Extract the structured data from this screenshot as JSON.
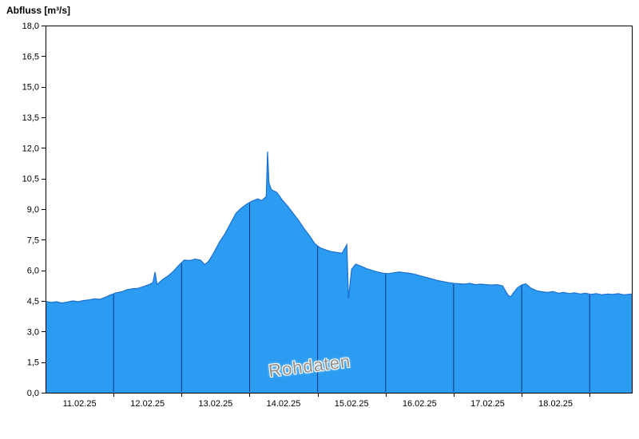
{
  "title": "Abfluss [m³/s]",
  "watermark": "Rohdaten",
  "chart_data": {
    "type": "area",
    "title": "Abfluss [m³/s]",
    "ylabel": "Abfluss [m³/s]",
    "xlabel": "",
    "x_unit": "days since 11.02.25 00:00",
    "xlim": [
      0,
      8.62
    ],
    "ylim": [
      0,
      18
    ],
    "grid": "vertical day boundaries inside filled area only",
    "y_ticks": [
      0,
      1.5,
      3,
      4.5,
      6,
      7.5,
      9,
      10.5,
      12,
      13.5,
      15,
      16.5,
      18
    ],
    "y_tick_labels": [
      "0,0",
      "1,5",
      "3,0",
      "4,5",
      "6,0",
      "7,5",
      "9,0",
      "10,5",
      "12,0",
      "13,5",
      "15,0",
      "16,5",
      "18,0"
    ],
    "x_tick_labels": [
      "11.02.25",
      "12.02.25",
      "13.02.25",
      "14.02.25",
      "15.02.25",
      "16.02.25",
      "17.02.25",
      "18.02.25"
    ],
    "x_tick_centers": [
      0.5,
      1.5,
      2.5,
      3.5,
      4.5,
      5.5,
      6.5,
      7.5
    ],
    "day_boundaries": [
      1,
      2,
      3,
      4,
      5,
      6,
      7,
      8
    ],
    "colors": {
      "fill": "#2B9CF2",
      "line": "#1B6FD0",
      "grid": "#14317C",
      "axis": "#000000",
      "watermark": "#8F8F8F"
    },
    "series": [
      {
        "name": "Rohdaten",
        "points": [
          [
            0.0,
            4.48
          ],
          [
            0.08,
            4.42
          ],
          [
            0.16,
            4.46
          ],
          [
            0.24,
            4.4
          ],
          [
            0.32,
            4.44
          ],
          [
            0.4,
            4.5
          ],
          [
            0.48,
            4.46
          ],
          [
            0.56,
            4.52
          ],
          [
            0.64,
            4.55
          ],
          [
            0.72,
            4.6
          ],
          [
            0.8,
            4.58
          ],
          [
            0.88,
            4.68
          ],
          [
            0.96,
            4.8
          ],
          [
            1.04,
            4.9
          ],
          [
            1.12,
            4.95
          ],
          [
            1.2,
            5.05
          ],
          [
            1.28,
            5.1
          ],
          [
            1.36,
            5.12
          ],
          [
            1.44,
            5.2
          ],
          [
            1.52,
            5.3
          ],
          [
            1.58,
            5.4
          ],
          [
            1.61,
            5.92
          ],
          [
            1.64,
            5.3
          ],
          [
            1.72,
            5.55
          ],
          [
            1.8,
            5.72
          ],
          [
            1.88,
            5.95
          ],
          [
            1.96,
            6.25
          ],
          [
            2.04,
            6.5
          ],
          [
            2.12,
            6.48
          ],
          [
            2.2,
            6.55
          ],
          [
            2.28,
            6.5
          ],
          [
            2.34,
            6.28
          ],
          [
            2.4,
            6.45
          ],
          [
            2.48,
            6.9
          ],
          [
            2.56,
            7.4
          ],
          [
            2.64,
            7.8
          ],
          [
            2.72,
            8.3
          ],
          [
            2.8,
            8.8
          ],
          [
            2.88,
            9.05
          ],
          [
            2.96,
            9.25
          ],
          [
            3.04,
            9.4
          ],
          [
            3.12,
            9.5
          ],
          [
            3.18,
            9.42
          ],
          [
            3.245,
            9.62
          ],
          [
            3.265,
            11.82
          ],
          [
            3.285,
            10.3
          ],
          [
            3.32,
            9.95
          ],
          [
            3.4,
            9.82
          ],
          [
            3.48,
            9.45
          ],
          [
            3.56,
            9.15
          ],
          [
            3.64,
            8.8
          ],
          [
            3.72,
            8.45
          ],
          [
            3.8,
            8.05
          ],
          [
            3.88,
            7.7
          ],
          [
            3.96,
            7.3
          ],
          [
            4.04,
            7.1
          ],
          [
            4.12,
            7.0
          ],
          [
            4.2,
            6.92
          ],
          [
            4.28,
            6.88
          ],
          [
            4.36,
            6.84
          ],
          [
            4.43,
            7.25
          ],
          [
            4.455,
            4.62
          ],
          [
            4.5,
            6.05
          ],
          [
            4.56,
            6.3
          ],
          [
            4.64,
            6.2
          ],
          [
            4.72,
            6.08
          ],
          [
            4.8,
            6.0
          ],
          [
            4.88,
            5.92
          ],
          [
            4.96,
            5.86
          ],
          [
            5.04,
            5.84
          ],
          [
            5.12,
            5.88
          ],
          [
            5.2,
            5.92
          ],
          [
            5.28,
            5.88
          ],
          [
            5.36,
            5.85
          ],
          [
            5.44,
            5.8
          ],
          [
            5.52,
            5.72
          ],
          [
            5.6,
            5.65
          ],
          [
            5.68,
            5.58
          ],
          [
            5.76,
            5.5
          ],
          [
            5.84,
            5.45
          ],
          [
            5.92,
            5.4
          ],
          [
            6.0,
            5.36
          ],
          [
            6.08,
            5.34
          ],
          [
            6.16,
            5.32
          ],
          [
            6.24,
            5.36
          ],
          [
            6.32,
            5.3
          ],
          [
            6.4,
            5.32
          ],
          [
            6.48,
            5.3
          ],
          [
            6.56,
            5.28
          ],
          [
            6.64,
            5.3
          ],
          [
            6.72,
            5.24
          ],
          [
            6.8,
            4.78
          ],
          [
            6.84,
            4.7
          ],
          [
            6.88,
            4.9
          ],
          [
            6.94,
            5.15
          ],
          [
            7.0,
            5.28
          ],
          [
            7.06,
            5.34
          ],
          [
            7.14,
            5.12
          ],
          [
            7.22,
            5.0
          ],
          [
            7.3,
            4.95
          ],
          [
            7.38,
            4.92
          ],
          [
            7.46,
            4.96
          ],
          [
            7.54,
            4.88
          ],
          [
            7.62,
            4.92
          ],
          [
            7.7,
            4.86
          ],
          [
            7.78,
            4.9
          ],
          [
            7.86,
            4.84
          ],
          [
            7.94,
            4.88
          ],
          [
            8.02,
            4.82
          ],
          [
            8.1,
            4.86
          ],
          [
            8.18,
            4.8
          ],
          [
            8.26,
            4.84
          ],
          [
            8.34,
            4.82
          ],
          [
            8.42,
            4.86
          ],
          [
            8.5,
            4.8
          ],
          [
            8.62,
            4.84
          ]
        ]
      }
    ]
  }
}
